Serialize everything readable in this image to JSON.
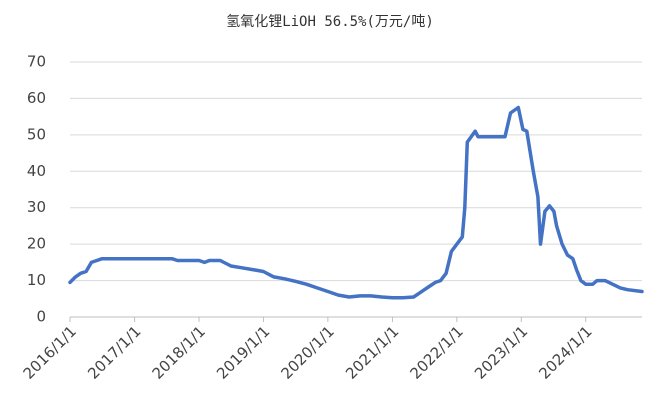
{
  "chart_data": {
    "type": "line",
    "title": "氢氧化锂LiOH 56.5%(万元/吨)",
    "x": [
      "2016/1/1",
      "2016/2/1",
      "2016/3/1",
      "2016/4/1",
      "2016/5/1",
      "2016/6/1",
      "2016/7/1",
      "2017/8/1",
      "2017/9/1",
      "2018/1/1",
      "2018/2/1",
      "2018/3/1",
      "2018/5/1",
      "2018/7/1",
      "2018/9/1",
      "2018/11/1",
      "2019/1/1",
      "2019/3/1",
      "2019/5/1",
      "2019/7/1",
      "2019/9/1",
      "2019/11/1",
      "2020/1/1",
      "2020/3/1",
      "2020/5/1",
      "2020/7/1",
      "2020/9/1",
      "2020/11/1",
      "2021/1/1",
      "2021/3/1",
      "2021/5/1",
      "2021/6/1",
      "2021/7/1",
      "2021/8/1",
      "2021/9/1",
      "2021/10/1",
      "2021/11/1",
      "2021/12/1",
      "2022/1/1",
      "2022/2/1",
      "2022/2/15",
      "2022/3/1",
      "2022/4/15",
      "2022/5/1",
      "2022/10/1",
      "2022/11/1",
      "2022/12/15",
      "2023/1/10",
      "2023/2/1",
      "2023/3/10",
      "2023/4/5",
      "2023/4/20",
      "2023/5/15",
      "2023/6/10",
      "2023/7/5",
      "2023/7/20",
      "2023/8/20",
      "2023/9/20",
      "2023/10/20",
      "2023/11/10",
      "2023/12/5",
      "2024/1/1",
      "2024/2/10",
      "2024/3/5",
      "2024/4/20",
      "2024/6/1",
      "2024/7/15",
      "2024/8/25",
      "2024/11/15"
    ],
    "series": [
      {
        "name": "氢氧化锂LiOH 56.5%",
        "color": "#4472c4",
        "values": [
          9.5,
          11,
          12,
          12.5,
          15,
          15.5,
          16,
          16,
          15.5,
          15.5,
          15,
          15.5,
          15.5,
          14,
          13.5,
          13,
          12.5,
          11,
          10.5,
          9.8,
          9,
          8,
          7,
          6,
          5.5,
          5.8,
          5.8,
          5.5,
          5.3,
          5.3,
          5.5,
          6.5,
          7.5,
          8.5,
          9.5,
          10,
          12,
          18,
          20,
          22,
          30,
          48,
          51,
          49.5,
          49.5,
          56,
          57.5,
          51.5,
          51,
          40,
          33,
          20,
          29,
          30.5,
          29,
          25,
          20,
          17,
          16,
          13,
          10,
          9,
          9,
          10,
          10,
          9,
          8,
          7.5,
          7
        ]
      }
    ],
    "xlim": [
      "2016/1/1",
      "2024/11/15"
    ],
    "xticks": [
      "2016/1/1",
      "2017/1/1",
      "2018/1/1",
      "2019/1/1",
      "2020/1/1",
      "2021/1/1",
      "2022/1/1",
      "2023/1/1",
      "2024/1/1"
    ],
    "ylim": [
      0,
      70
    ],
    "yticks": [
      0,
      10,
      20,
      30,
      40,
      50,
      60,
      70
    ],
    "grid": true
  }
}
